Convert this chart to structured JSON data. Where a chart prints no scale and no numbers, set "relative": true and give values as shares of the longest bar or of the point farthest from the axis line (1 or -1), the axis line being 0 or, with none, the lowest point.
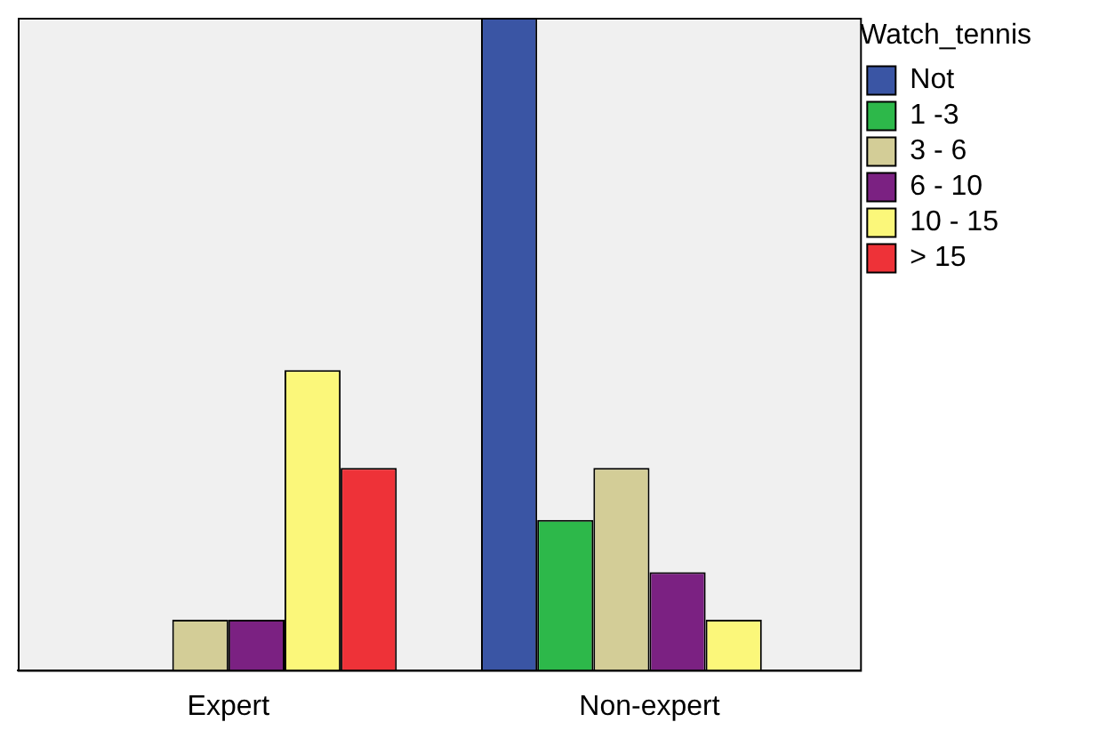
{
  "chart_data": {
    "type": "bar",
    "relative": true,
    "categories": [
      "Expert",
      "Non-expert"
    ],
    "legend": "right",
    "legend_title": "Watch_tennis",
    "grid": false,
    "series": [
      {
        "name": "Not",
        "color": "#3a55a4",
        "values": [
          null,
          1
        ]
      },
      {
        "name": "1 -3",
        "color": "#2db84a",
        "values": [
          null,
          0.23
        ]
      },
      {
        "name": "3 - 6",
        "color": "#d3cd97",
        "values": [
          0.077,
          0.31
        ]
      },
      {
        "name": "6 - 10",
        "color": "#7b2182",
        "values": [
          0.077,
          0.15
        ]
      },
      {
        "name": "10 - 15",
        "color": "#fbf77a",
        "values": [
          0.46,
          0.077
        ]
      },
      {
        "name": "> 15",
        "color": "#ee3238",
        "values": [
          0.31,
          null
        ]
      }
    ]
  }
}
